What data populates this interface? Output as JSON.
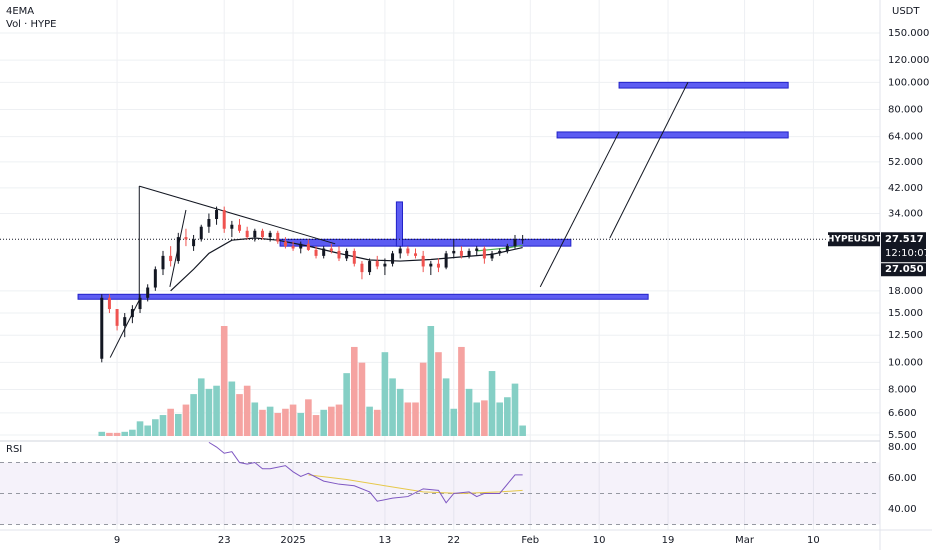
{
  "chart_data": {
    "type": "candlestick",
    "title": "4EMA",
    "subtitle": "Vol · HYPE",
    "y_axis_label": "USDT",
    "symbol": "HYPEUSDT",
    "last_price": {
      "value": 27.517,
      "label": "27.517"
    },
    "countdown": "12:10:07",
    "ema_price": {
      "value": 27.05,
      "label": "27.050"
    },
    "log_scale": true,
    "grid": true,
    "xlim": [
      -15.3,
      99.7
    ],
    "ylim": [
      5.28,
      196.8
    ],
    "xticks": [
      {
        "value": 0,
        "label": "9"
      },
      {
        "value": 14,
        "label": "23"
      },
      {
        "value": 23,
        "label": "2025"
      },
      {
        "value": 35,
        "label": "13"
      },
      {
        "value": 44,
        "label": "22"
      },
      {
        "value": 54,
        "label": "Feb"
      },
      {
        "value": 63,
        "label": "10"
      },
      {
        "value": 72,
        "label": "19"
      },
      {
        "value": 82,
        "label": "Mar"
      },
      {
        "value": 91,
        "label": "10"
      }
    ],
    "yticks": [
      {
        "value": 150,
        "label": "150.000"
      },
      {
        "value": 120,
        "label": "120.000"
      },
      {
        "value": 100,
        "label": "100.000"
      },
      {
        "value": 80,
        "label": "80.000"
      },
      {
        "value": 64,
        "label": "64.000"
      },
      {
        "value": 52,
        "label": "52.000"
      },
      {
        "value": 42,
        "label": "42.000"
      },
      {
        "value": 34,
        "label": "34.000"
      },
      {
        "value": 18,
        "label": "18.000"
      },
      {
        "value": 15,
        "label": "15.000"
      },
      {
        "value": 12.5,
        "label": "12.500"
      },
      {
        "value": 10,
        "label": "10.000"
      },
      {
        "value": 8,
        "label": "8.000"
      },
      {
        "value": 6.6,
        "label": "6.600"
      },
      {
        "value": 5.5,
        "label": "5.500"
      }
    ],
    "up_color": "#131722",
    "down_color": "#ef5350",
    "volume_up_color": "#85cfc5",
    "volume_down_color": "#f5a3a1",
    "candles": {
      "x": [
        -2,
        -1,
        0,
        1,
        2,
        3,
        4,
        5,
        6,
        7,
        8,
        9,
        10,
        11,
        12,
        13,
        14,
        15,
        16,
        17,
        18,
        19,
        20,
        21,
        22,
        23,
        24,
        25,
        26,
        27,
        28,
        29,
        30,
        31,
        32,
        33,
        34,
        35,
        36,
        37,
        38,
        39,
        40,
        41,
        42,
        43,
        44,
        45,
        46,
        47,
        48,
        49,
        50,
        51,
        52,
        53
      ],
      "open": [
        10.3,
        17,
        15.5,
        13.5,
        14.5,
        15.5,
        17,
        18.5,
        21.5,
        24,
        23,
        28,
        26,
        27.5,
        30.5,
        32.5,
        35,
        30,
        31,
        29.5,
        28,
        29.5,
        28,
        29,
        27,
        26,
        25.5,
        26.5,
        25.2,
        24,
        25.5,
        25,
        23.5,
        25,
        22.5,
        21,
        23,
        22,
        22.5,
        24.5,
        25.5,
        24.5,
        24,
        22,
        22.5,
        21.8,
        24.5,
        25,
        24,
        25,
        25.5,
        23.5,
        24.5,
        25,
        26,
        27.5
      ],
      "high": [
        17.5,
        17.5,
        15.5,
        15,
        16,
        17.5,
        19,
        22,
        25,
        26,
        29,
        30,
        28.5,
        31,
        34,
        36,
        36,
        32,
        32.5,
        30.5,
        30,
        30,
        29.5,
        29.5,
        28,
        27,
        27,
        27.5,
        26,
        26,
        26.5,
        26,
        25.5,
        25.5,
        23,
        23.5,
        24,
        23.5,
        25,
        26,
        26,
        25.5,
        25,
        23,
        23.5,
        25,
        27.5,
        26,
        25.5,
        26,
        26,
        25,
        25.5,
        26.5,
        28.5,
        28.5
      ],
      "low": [
        10,
        15,
        13,
        12.3,
        13.8,
        15,
        16.5,
        18,
        20.5,
        22,
        22.5,
        26,
        25,
        27,
        29,
        31,
        29,
        28,
        29,
        27.5,
        27,
        27.5,
        27,
        26.5,
        25.5,
        25,
        24.5,
        25,
        23.5,
        23.5,
        24.5,
        23,
        23,
        22,
        19.8,
        20.5,
        21.5,
        20.5,
        22,
        23.5,
        24,
        23.5,
        21,
        20.5,
        21,
        21.5,
        23.5,
        23.5,
        23.5,
        24,
        22.5,
        23,
        24,
        24.5,
        25.5,
        26.5
      ],
      "close": [
        17,
        15.5,
        13.5,
        14.5,
        15.5,
        17,
        18.5,
        21.5,
        24,
        23,
        28,
        27.5,
        27.5,
        30.5,
        32.5,
        35,
        30,
        31,
        29.5,
        28,
        29.5,
        28,
        29,
        27,
        26,
        25.5,
        26.5,
        25.2,
        24,
        25.5,
        25,
        23.5,
        25,
        22.5,
        21,
        23,
        22,
        22.5,
        24.5,
        25.5,
        24.5,
        24,
        22,
        22.5,
        21.8,
        24.5,
        25,
        24,
        25,
        25.5,
        23.5,
        24.5,
        25,
        26,
        27.5,
        27.517
      ]
    },
    "volume": [
      4,
      3,
      3,
      4,
      6,
      14,
      10,
      16,
      20,
      26,
      21,
      30,
      40,
      55,
      45,
      48,
      105,
      52,
      40,
      48,
      32,
      25,
      28,
      22,
      26,
      30,
      22,
      35,
      20,
      25,
      28,
      30,
      60,
      85,
      70,
      28,
      25,
      80,
      55,
      45,
      32,
      32,
      70,
      105,
      80,
      55,
      26,
      85,
      45,
      32,
      34,
      62,
      32,
      37,
      50,
      10
    ],
    "ema": {
      "color": "#131722",
      "x": [
        7,
        10,
        12,
        15,
        18,
        21,
        25,
        29,
        33,
        37,
        41,
        45,
        49,
        53
      ],
      "values": [
        18,
        21.5,
        24.5,
        27.3,
        27.8,
        27.3,
        26,
        24.5,
        23.2,
        23,
        23.3,
        23.8,
        24.3,
        25.7
      ]
    },
    "ema_fast": {
      "color": "#4caf50",
      "x": [
        47,
        49,
        51,
        53
      ],
      "values": [
        25,
        25.3,
        25.6,
        26.2
      ]
    },
    "zones": [
      {
        "x": [
          -5.1,
          69.4
        ],
        "y": [
          16.8,
          17.5
        ]
      },
      {
        "x": [
          21.3,
          59.3
        ],
        "y": [
          26,
          27.5
        ]
      },
      {
        "x": [
          36.5,
          37.3
        ],
        "y": [
          26,
          37.4
        ]
      },
      {
        "x": [
          57.5,
          87.7
        ],
        "y": [
          63.3,
          66.5
        ]
      },
      {
        "x": [
          65.6,
          87.7
        ],
        "y": [
          95.4,
          100
        ]
      }
    ],
    "zone_color": "#5c5cf2",
    "lines": [
      {
        "x": [
          2.9,
          28.5
        ],
        "y": [
          42.6,
          26.5
        ]
      },
      {
        "x": [
          2.9,
          2.9
        ],
        "y": [
          42.6,
          16.7
        ]
      },
      {
        "x": [
          -0.9,
          2.9
        ],
        "y": [
          10.4,
          16.7
        ]
      },
      {
        "x": [
          6.9,
          9.0
        ],
        "y": [
          18.6,
          35
        ]
      },
      {
        "x": [
          55.3,
          65.6
        ],
        "y": [
          18.6,
          66.5
        ]
      },
      {
        "x": [
          64.4,
          74.6
        ],
        "y": [
          27.8,
          100
        ]
      }
    ],
    "rsi": {
      "title": "RSI",
      "color": "#7e57c2",
      "ma_color": "#e6c84a",
      "ylim": [
        27.7,
        82.6
      ],
      "yticks": [
        {
          "value": 80,
          "label": "80.00"
        },
        {
          "value": 60,
          "label": "60.00"
        },
        {
          "value": 40,
          "label": "40.00"
        }
      ],
      "bands": [
        70,
        50,
        30
      ],
      "x": [
        12,
        13,
        14,
        15,
        16,
        17,
        18,
        19,
        20,
        22,
        23,
        24,
        25,
        27,
        29,
        31,
        33,
        34,
        36,
        38,
        40,
        42,
        43,
        44,
        46,
        47,
        48,
        50,
        52,
        53
      ],
      "values": [
        83,
        80,
        76,
        77,
        70,
        69,
        70,
        66,
        66,
        68,
        64,
        61,
        63,
        58,
        56,
        55,
        51,
        45,
        47,
        48,
        53,
        52,
        44,
        50,
        51,
        48,
        50,
        50,
        62,
        62
      ],
      "ma_x": [
        25,
        30,
        35,
        40,
        45,
        50,
        53
      ],
      "ma_values": [
        62,
        59,
        55,
        51,
        50,
        51,
        52
      ]
    }
  }
}
